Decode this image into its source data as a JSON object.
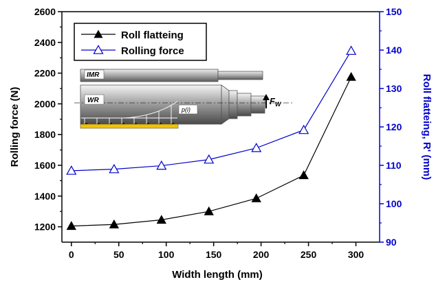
{
  "chart_data": {
    "type": "line",
    "xlabel": "Width length (mm)",
    "ylabel_left": "Rolling force (N)",
    "ylabel_right": "Roll flatteing, R' (mm)",
    "xlim": [
      -10,
      325
    ],
    "ylim_left": [
      1100,
      2600
    ],
    "ylim_right": [
      90,
      150
    ],
    "x_ticks": [
      0,
      50,
      100,
      150,
      200,
      250,
      300
    ],
    "y_left_ticks": [
      1200,
      1400,
      1600,
      1800,
      2000,
      2200,
      2400,
      2600
    ],
    "y_right_ticks": [
      90,
      100,
      110,
      120,
      130,
      140,
      150
    ],
    "legend_position": "top-left",
    "series": [
      {
        "name": "Roll flatteing",
        "axis": "left",
        "marker": "filled-triangle",
        "color": "#000000",
        "x": [
          0,
          45,
          95,
          145,
          195,
          245,
          295
        ],
        "y": [
          1205,
          1215,
          1245,
          1300,
          1385,
          1535,
          2175
        ]
      },
      {
        "name": "Rolling force",
        "axis": "right",
        "marker": "open-triangle",
        "color": "#0000cc",
        "x": [
          0,
          45,
          95,
          145,
          195,
          245,
          295
        ],
        "y": [
          108.6,
          109.0,
          109.9,
          111.5,
          114.5,
          119.2,
          139.8
        ]
      }
    ],
    "inset": {
      "labels": [
        "IMR",
        "WR",
        "p(i)"
      ],
      "force_label": "F",
      "force_subscript": "W"
    }
  },
  "colors": {
    "left_axis": "#000000",
    "right_axis": "#0000cc",
    "strip": "#f2c200"
  }
}
